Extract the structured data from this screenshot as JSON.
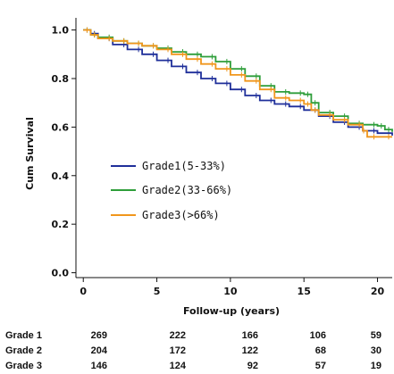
{
  "chart_data": {
    "type": "line",
    "subtype": "kaplan-meier",
    "title": "",
    "xlabel": "Follow-up (years)",
    "ylabel": "Cum Survival",
    "xlim": [
      -0.5,
      21
    ],
    "ylim": [
      -0.02,
      1.05
    ],
    "x_ticks": [
      0,
      5,
      10,
      15,
      20
    ],
    "y_ticks": [
      0.0,
      0.2,
      0.4,
      0.6,
      0.8,
      1.0
    ],
    "y_tick_labels": [
      "0.0",
      "0.2",
      "0.4",
      "0.6",
      "0.8",
      "1.0"
    ],
    "grid": false,
    "legend_position": "center-left",
    "series": [
      {
        "name": "Grade1(5-33%)",
        "color": "#1f2f9a",
        "x": [
          0,
          0.5,
          1,
          2,
          3,
          4,
          5,
          6,
          7,
          8,
          9,
          10,
          11,
          12,
          13,
          14,
          15,
          16,
          17,
          18,
          19,
          20,
          21
        ],
        "y": [
          1.0,
          0.985,
          0.965,
          0.94,
          0.92,
          0.9,
          0.875,
          0.85,
          0.825,
          0.8,
          0.78,
          0.755,
          0.73,
          0.71,
          0.695,
          0.685,
          0.67,
          0.645,
          0.62,
          0.6,
          0.585,
          0.575,
          0.565
        ]
      },
      {
        "name": "Grade2(33-66%)",
        "color": "#2e9e3a",
        "x": [
          0,
          0.5,
          1,
          2,
          3,
          4,
          5,
          6,
          7,
          8,
          9,
          10,
          11,
          12,
          13,
          14,
          15,
          15.5,
          16,
          17,
          18,
          19,
          20,
          20.5,
          21
        ],
        "y": [
          1.0,
          0.98,
          0.97,
          0.955,
          0.945,
          0.935,
          0.925,
          0.91,
          0.9,
          0.89,
          0.87,
          0.84,
          0.81,
          0.77,
          0.745,
          0.74,
          0.735,
          0.7,
          0.66,
          0.645,
          0.615,
          0.61,
          0.605,
          0.59,
          0.58
        ]
      },
      {
        "name": "Grade3(>66%)",
        "color": "#f0961c",
        "x": [
          0,
          0.5,
          1,
          2,
          3,
          4,
          5,
          6,
          7,
          8,
          9,
          10,
          11,
          12,
          13,
          14,
          15,
          15.5,
          16,
          17,
          18,
          19,
          19.3,
          20,
          21
        ],
        "y": [
          1.0,
          0.98,
          0.965,
          0.955,
          0.945,
          0.935,
          0.92,
          0.9,
          0.88,
          0.86,
          0.84,
          0.815,
          0.79,
          0.755,
          0.72,
          0.71,
          0.695,
          0.67,
          0.65,
          0.63,
          0.61,
          0.585,
          0.56,
          0.56,
          0.56
        ]
      }
    ],
    "risk_table": {
      "columns_x": [
        0,
        5,
        10,
        15,
        20
      ],
      "rows": [
        {
          "label": "Grade 1",
          "values": [
            "269",
            "222",
            "166",
            "106",
            "59"
          ]
        },
        {
          "label": "Grade 2",
          "values": [
            "204",
            "172",
            "122",
            "68",
            "30"
          ]
        },
        {
          "label": "Grade 3",
          "values": [
            "146",
            "124",
            "92",
            "57",
            "19"
          ]
        }
      ]
    }
  }
}
